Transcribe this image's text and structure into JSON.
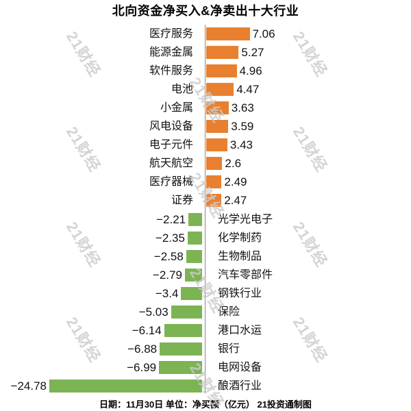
{
  "title": "北向资金净买入&净卖出十大行业",
  "caption": "日期：11月30日 单位：净买额（亿元） 21投资通制图",
  "watermark": {
    "text": "21财经",
    "color": "#cbcbcb"
  },
  "colors": {
    "positive_bar": "#E8802F",
    "negative_bar": "#7CB454",
    "axis_line": "#8a8a8a",
    "text": "#111111"
  },
  "chart_data": {
    "type": "bar",
    "orientation": "horizontal",
    "title": "北向资金净买入&净卖出十大行业",
    "xlabel": "净买额（亿元）",
    "ylabel": "",
    "categories": [
      "医疗服务",
      "能源金属",
      "软件服务",
      "电池",
      "小金属",
      "风电设备",
      "电子元件",
      "航天航空",
      "医疗器械",
      "证券",
      "光学光电子",
      "化学制药",
      "生物制品",
      "汽车零部件",
      "钢铁行业",
      "保险",
      "港口水运",
      "银行",
      "电网设备",
      "酿酒行业"
    ],
    "values": [
      7.06,
      5.27,
      4.96,
      4.47,
      3.63,
      3.59,
      3.43,
      2.6,
      2.49,
      2.47,
      -2.21,
      -2.35,
      -2.58,
      -2.79,
      -3.4,
      -5.03,
      -6.14,
      -6.88,
      -6.99,
      -24.78
    ],
    "value_labels": [
      "7.06",
      "5.27",
      "4.96",
      "4.47",
      "3.63",
      "3.59",
      "3.43",
      "2.6",
      "2.49",
      "2.47",
      "−2.21",
      "−2.35",
      "−2.58",
      "−2.79",
      "−3.4",
      "−5.03",
      "−6.14",
      "−6.88",
      "−6.99",
      "−24.78"
    ],
    "xlim": [
      -25,
      8
    ],
    "grid": "off",
    "legend": "none",
    "zero_line": true,
    "positive_color": "#E8802F",
    "negative_color": "#7CB454"
  }
}
